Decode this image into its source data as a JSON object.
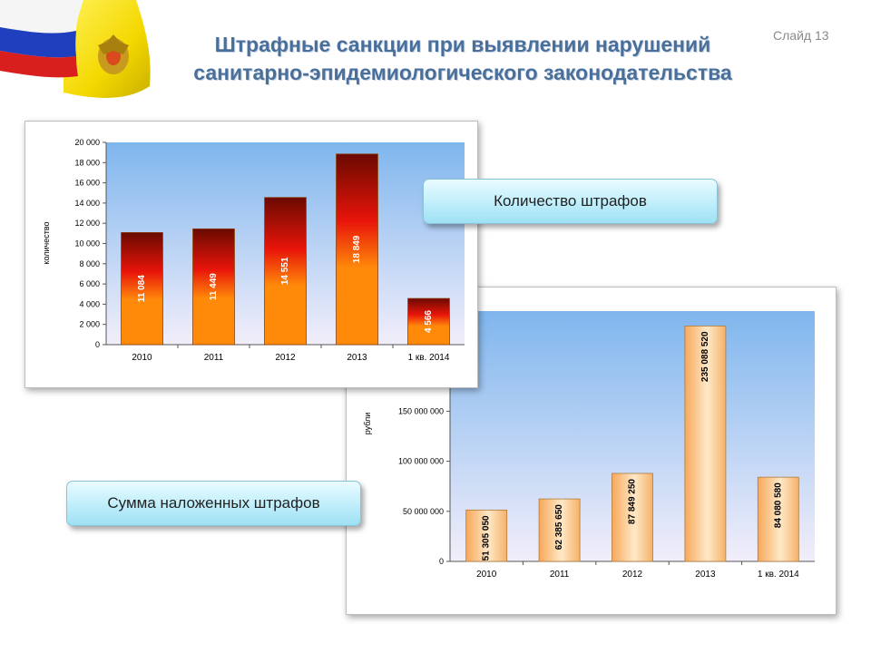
{
  "title": {
    "line1": "Штрафные санкции при выявлении нарушений",
    "line2": "санитарно-эпидемиологического законодательства"
  },
  "slide_label": "Слайд 13",
  "callouts": {
    "count_label": "Количество штрафов",
    "sum_label": "Сумма наложенных штрафов"
  },
  "chart_data": [
    {
      "type": "bar",
      "categories": [
        "2010",
        "2011",
        "2012",
        "2013",
        "1 кв. 2014"
      ],
      "values": [
        11084,
        11449,
        14551,
        18849,
        4566
      ],
      "value_labels": [
        "11 084",
        "11 449",
        "14 551",
        "18 849",
        "4 566"
      ],
      "ylabel": "количество",
      "ylim": [
        0,
        20000
      ],
      "y_ticks": [
        "0",
        "2 000",
        "4 000",
        "6 000",
        "8 000",
        "10 000",
        "12 000",
        "14 000",
        "16 000",
        "18 000",
        "20 000"
      ],
      "grid": false,
      "legend": "none"
    },
    {
      "type": "bar",
      "categories": [
        "2010",
        "2011",
        "2012",
        "2013",
        "1 кв. 2014"
      ],
      "values": [
        51305050,
        62385650,
        87849250,
        235088520,
        84080580
      ],
      "value_labels": [
        "51 305 050",
        "62 385 650",
        "87 849 250",
        "235 088 520",
        "84 080 580"
      ],
      "ylabel": "рубли",
      "ylim": [
        0,
        250000000
      ],
      "y_ticks": [
        "0",
        "50 000 000",
        "100 000 000",
        "150 000 000"
      ],
      "grid": false,
      "legend": "none"
    }
  ]
}
